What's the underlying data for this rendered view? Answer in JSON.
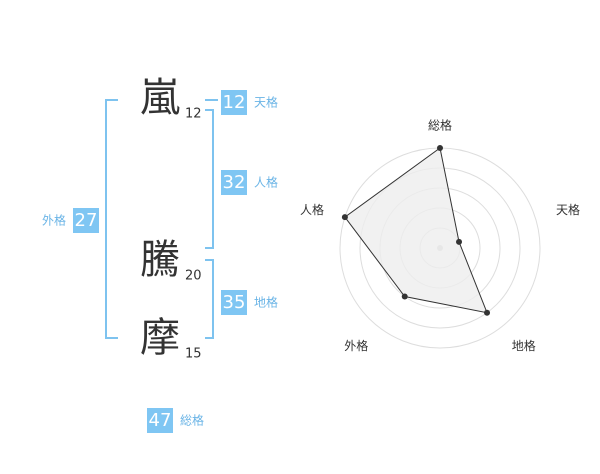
{
  "name": {
    "characters": [
      {
        "char": "嵐",
        "strokes": 12
      },
      {
        "char": "騰",
        "strokes": 20
      },
      {
        "char": "摩",
        "strokes": 15
      }
    ]
  },
  "grids": [
    {
      "label": "天格",
      "value": 12
    },
    {
      "label": "人格",
      "value": 32
    },
    {
      "label": "地格",
      "value": 35
    },
    {
      "label": "外格",
      "value": 27
    },
    {
      "label": "総格",
      "value": 47
    }
  ],
  "chart_data": {
    "type": "radar",
    "categories": [
      "総格",
      "天格",
      "地格",
      "外格",
      "人格"
    ],
    "values": [
      5,
      1,
      4,
      3,
      5
    ],
    "rlim": [
      0,
      5
    ],
    "rticks": [
      1,
      2,
      3,
      4,
      5
    ],
    "grid": true,
    "color": "#333333",
    "fill": "#eeeeee"
  }
}
